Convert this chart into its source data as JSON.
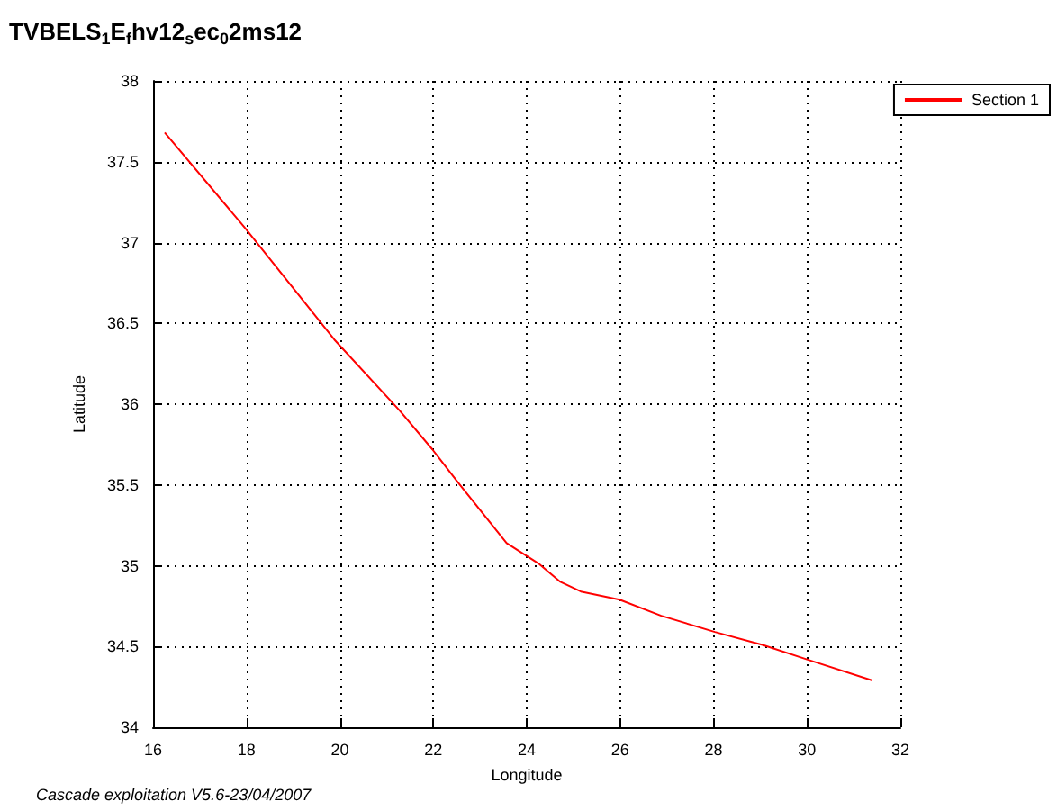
{
  "chart_data": {
    "type": "line",
    "title": "TVBELS$_{1}$E$_{f}$hv12$_{s}$ec$_{0}$2ms12",
    "xlabel": "Longitude",
    "ylabel": "Latitude",
    "annotations": [
      "Cascade exploitation V5.6-23/04/2007"
    ],
    "x": [
      16.25,
      17.97,
      19.88,
      21.28,
      21.98,
      22.49,
      23.57,
      24.27,
      24.72,
      25.16,
      25.99,
      26.88,
      28.03,
      29.05,
      30.0,
      31.4
    ],
    "series": [
      {
        "name": "Section 1",
        "color": "#ff0000",
        "values": [
          37.68,
          37.09,
          36.4,
          35.96,
          35.72,
          35.53,
          35.14,
          35.01,
          34.9,
          34.84,
          34.79,
          34.69,
          34.59,
          34.51,
          34.42,
          34.29
        ]
      }
    ],
    "xlim": [
      16,
      32
    ],
    "xticks": [
      16,
      18,
      20,
      22,
      24,
      26,
      28,
      30,
      32
    ],
    "ylim": [
      34,
      38
    ],
    "yticks": [
      34,
      34.5,
      35,
      35.5,
      36,
      36.5,
      37,
      37.5,
      38
    ],
    "grid": true,
    "legend": "top right",
    "marker": "none",
    "line_style": "solid"
  }
}
